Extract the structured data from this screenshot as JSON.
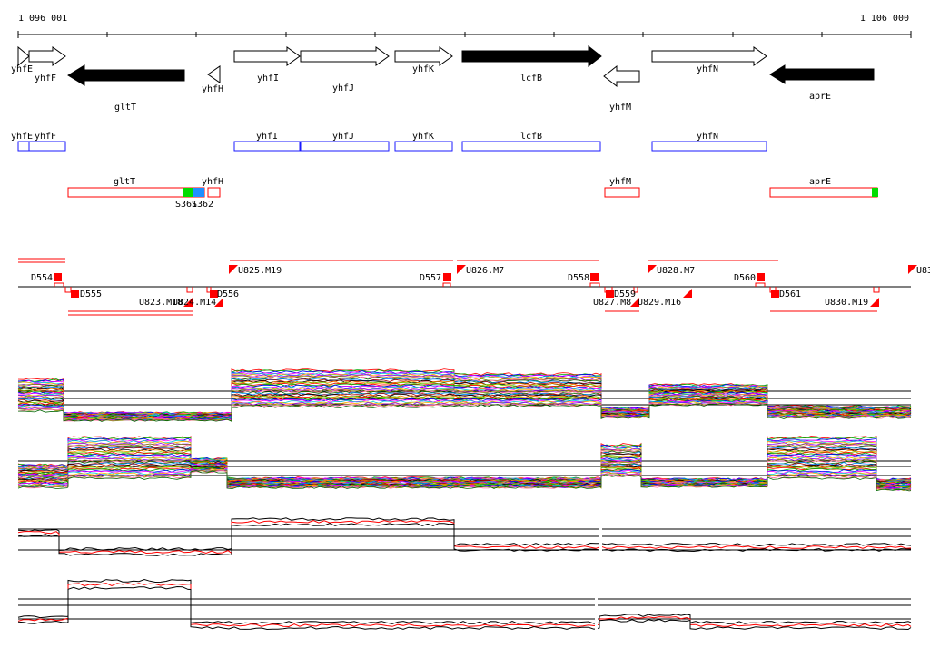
{
  "coords": {
    "start": "1 096 001",
    "end": "1 106 000"
  },
  "palette": {
    "gene_outline": "#000000",
    "gene_solid": "#000000",
    "cds_box": "#1a1aff",
    "transcript_box": "#ff0000",
    "marker_green": "#00dd00",
    "marker_blue": "#1e90ff",
    "feature_red": "#ff0000",
    "profile_black": "#000000",
    "profile_red": "#ff0000"
  },
  "genes": [
    {
      "name": "yhfE"
    },
    {
      "name": "yhfF"
    },
    {
      "name": "gltT"
    },
    {
      "name": "yhfH"
    },
    {
      "name": "yhfI"
    },
    {
      "name": "yhfJ"
    },
    {
      "name": "yhfK"
    },
    {
      "name": "lcfB"
    },
    {
      "name": "yhfM"
    },
    {
      "name": "yhfN"
    },
    {
      "name": "aprE"
    }
  ],
  "transcripts": [
    {
      "name": "gltT"
    },
    {
      "name": "yhfH"
    },
    {
      "name": "yhfM"
    },
    {
      "name": "aprE"
    }
  ],
  "transcript_markers": [
    {
      "name": "S361"
    },
    {
      "name": "S362"
    }
  ],
  "features": [
    {
      "name": "D554"
    },
    {
      "name": "D555"
    },
    {
      "name": "U823.M18"
    },
    {
      "name": "U824.M14"
    },
    {
      "name": "D556"
    },
    {
      "name": "U825.M19"
    },
    {
      "name": "D557"
    },
    {
      "name": "U826.M7"
    },
    {
      "name": "D558"
    },
    {
      "name": "D559"
    },
    {
      "name": "U827.M8"
    },
    {
      "name": "U828.M7"
    },
    {
      "name": "U829.M16"
    },
    {
      "name": "D560"
    },
    {
      "name": "D561"
    },
    {
      "name": "U830.M19"
    },
    {
      "name": "U83"
    }
  ]
}
